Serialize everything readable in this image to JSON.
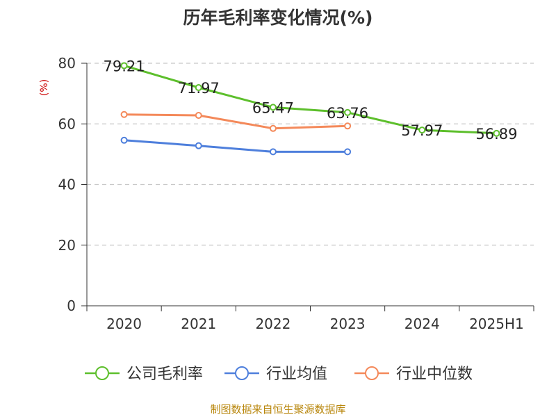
{
  "chart_data": {
    "type": "line",
    "title": "历年毛利率变化情况(%)",
    "ylabel": "(%)",
    "categories": [
      "2020",
      "2021",
      "2022",
      "2023",
      "2024",
      "2025H1"
    ],
    "ylim": [
      0,
      80
    ],
    "yticks": [
      0,
      20,
      40,
      60,
      80
    ],
    "grid": true,
    "legend_position": "bottom",
    "series": [
      {
        "name": "公司毛利率",
        "color": "#5dbf2c",
        "values": [
          79.21,
          71.97,
          65.47,
          63.76,
          57.97,
          56.89
        ],
        "labels": [
          "79.21",
          "71.97",
          "65.47",
          "63.76",
          "57.97",
          "56.89"
        ]
      },
      {
        "name": "行业均值",
        "color": "#4e7fdc",
        "values": [
          54.6,
          52.8,
          50.8,
          50.8,
          null,
          null
        ]
      },
      {
        "name": "行业中位数",
        "color": "#f4895a",
        "values": [
          63.1,
          62.8,
          58.5,
          59.3,
          null,
          null
        ]
      }
    ]
  },
  "source": "制图数据来自恒生聚源数据库"
}
